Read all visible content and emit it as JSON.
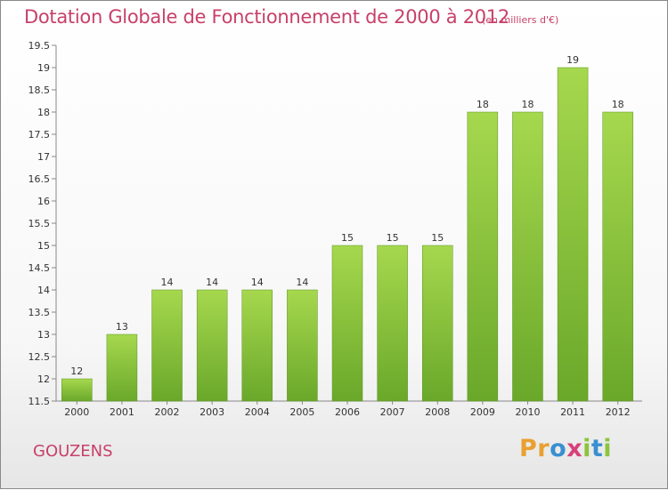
{
  "header": {
    "title": "Dotation Globale de Fonctionnement de 2000 à 2012",
    "unit": "(en milliers d'€)"
  },
  "footer": {
    "place": "GOUZENS",
    "logo_letters": [
      {
        "char": "P",
        "color": "#e8a030"
      },
      {
        "char": "r",
        "color": "#e8a030"
      },
      {
        "char": "o",
        "color": "#3a8fd0"
      },
      {
        "char": "x",
        "color": "#d8407a"
      },
      {
        "char": "i",
        "color": "#8cc43c"
      },
      {
        "char": "t",
        "color": "#3a8fd0"
      },
      {
        "char": "i",
        "color": "#8cc43c"
      }
    ]
  },
  "colors": {
    "bar_light": "#a6d84e",
    "bar_dark": "#6aa82a",
    "title": "#c8406a"
  },
  "chart_data": {
    "type": "bar",
    "categories": [
      "2000",
      "2001",
      "2002",
      "2003",
      "2004",
      "2005",
      "2006",
      "2007",
      "2008",
      "2009",
      "2010",
      "2011",
      "2012"
    ],
    "values": [
      12,
      13,
      14,
      14,
      14,
      14,
      15,
      15,
      15,
      18,
      18,
      19,
      18
    ],
    "labels": [
      "12",
      "13",
      "14",
      "14",
      "14",
      "14",
      "15",
      "15",
      "15",
      "18",
      "18",
      "19",
      "18"
    ],
    "title": "Dotation Globale de Fonctionnement de 2000 à 2012",
    "ylim": [
      11.5,
      19.5
    ],
    "yticks": [
      "11.5",
      "12",
      "12.5",
      "13",
      "13.5",
      "14",
      "14.5",
      "15",
      "15.5",
      "16",
      "16.5",
      "17",
      "17.5",
      "18",
      "18.5",
      "19",
      "19.5"
    ],
    "grid": false
  }
}
